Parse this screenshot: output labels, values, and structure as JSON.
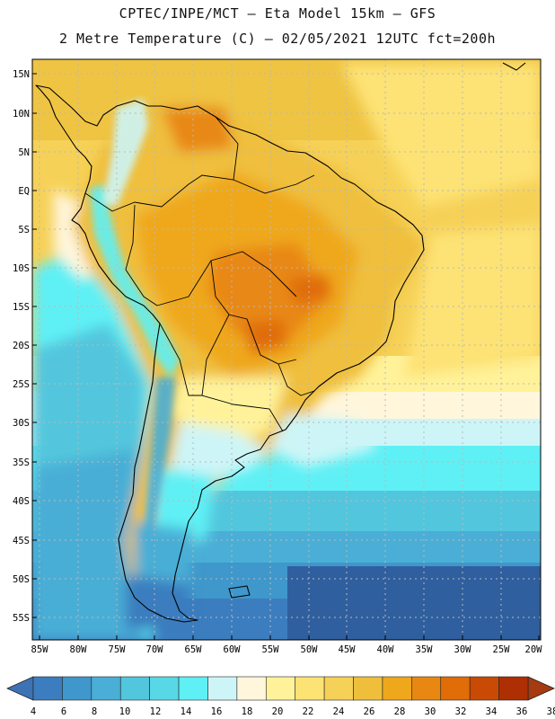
{
  "header": {
    "line1": "CPTEC/INPE/MCT –  Eta Model 15km – GFS",
    "line2": "2 Metre Temperature (C) – 02/05/2021 12UTC fct=200h"
  },
  "axes": {
    "lat_labels": [
      "15N",
      "10N",
      "5N",
      "EQ",
      "5S",
      "10S",
      "15S",
      "20S",
      "25S",
      "30S",
      "35S",
      "40S",
      "45S",
      "50S",
      "55S"
    ],
    "lon_labels": [
      "85W",
      "80W",
      "75W",
      "70W",
      "65W",
      "60W",
      "55W",
      "50W",
      "45W",
      "40W",
      "35W",
      "30W",
      "25W",
      "20W"
    ]
  },
  "colorbar": {
    "ticks": [
      "4",
      "6",
      "8",
      "10",
      "12",
      "14",
      "16",
      "18",
      "20",
      "22",
      "24",
      "26",
      "28",
      "30",
      "32",
      "34",
      "36",
      "38"
    ],
    "colors": [
      "#2f5f9e",
      "#3b7dbf",
      "#3f97cb",
      "#4aaed6",
      "#52c6dd",
      "#58d8e6",
      "#5ff0f5",
      "#cdf5f7",
      "#fff6dc",
      "#fff29a",
      "#fde274",
      "#f6d157",
      "#efbf3c",
      "#efa81c",
      "#e88812",
      "#e06d08",
      "#c94a05",
      "#ad2f03"
    ],
    "min_color": "#3d73b5",
    "max_color": "#a63a10"
  }
}
